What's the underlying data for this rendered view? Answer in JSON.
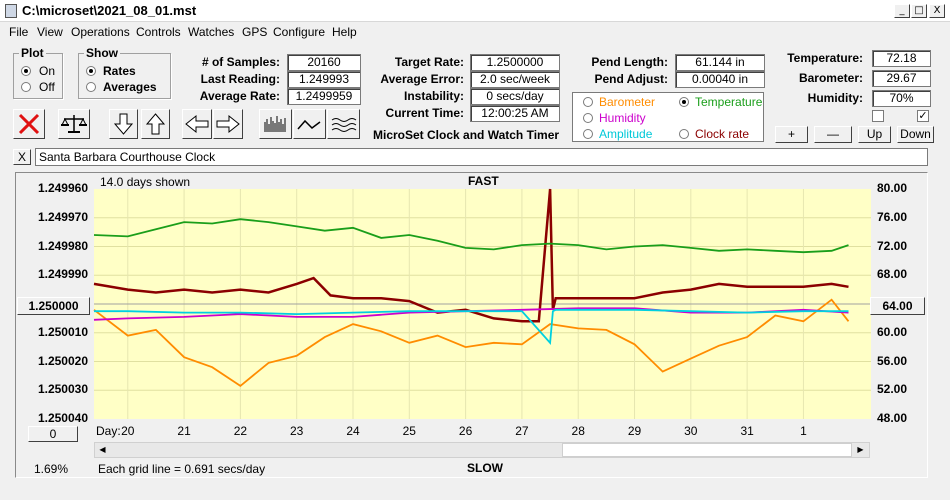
{
  "window": {
    "title": "C:\\microset\\2021_08_01.mst",
    "minimize": "_",
    "maximize": "□",
    "close": "X"
  },
  "menu": [
    "File",
    "View",
    "Operations",
    "Controls",
    "Watches",
    "GPS",
    "Configure",
    "Help"
  ],
  "plot_group": {
    "label": "Plot",
    "options": [
      "On",
      "Off"
    ],
    "selected": "On"
  },
  "show_group": {
    "label": "Show",
    "options": [
      "Rates",
      "Averages"
    ],
    "selected": "Rates"
  },
  "stats": {
    "samples_label": "# of Samples:",
    "samples": "20160",
    "last_reading_label": "Last Reading:",
    "last_reading": "1.249993",
    "average_rate_label": "Average Rate:",
    "average_rate": "1.2499959",
    "target_rate_label": "Target Rate:",
    "target_rate": "1.2500000",
    "average_error_label": "Average Error:",
    "average_error": "2.0 sec/week",
    "instability_label": "Instability:",
    "instability": "0 secs/day",
    "current_time_label": "Current Time:",
    "current_time": "12:00:25 AM",
    "pend_length_label": "Pend Length:",
    "pend_length": "61.144 in",
    "pend_adjust_label": "Pend Adjust:",
    "pend_adjust": "0.00040 in",
    "temperature_label": "Temperature:",
    "temperature": "72.18",
    "barometer_label": "Barometer:",
    "barometer": "29.67",
    "humidity_label": "Humidity:",
    "humidity": "70%"
  },
  "app_caption": "MicroSet Clock and Watch Timer",
  "overlay": {
    "options": [
      {
        "label": "Barometer",
        "color": "#ff8c00",
        "selected": false
      },
      {
        "label": "Temperature",
        "color": "#1a9e1a",
        "selected": true
      },
      {
        "label": "Humidity",
        "color": "#cc00cc",
        "selected": false
      },
      {
        "label": "Amplitude",
        "color": "#00d0e0",
        "selected": false
      },
      {
        "label": "Clock rate",
        "color": "#8b0000",
        "selected": false
      }
    ]
  },
  "scale_buttons": {
    "plus": "+",
    "minus": "—",
    "up": "Up",
    "down": "Down"
  },
  "clock_name": {
    "close": "X",
    "value": "Santa Barbara Courthouse Clock"
  },
  "chart_labels": {
    "days_shown": "14.0 days shown",
    "fast": "FAST",
    "slow": "SLOW",
    "day_label": "Day:",
    "grid_note": "Each grid line = 0.691 secs/day",
    "percent": "1.69%",
    "center_left": "1.250000",
    "center_right": "64.00",
    "offset_button": "0"
  },
  "chart_data": {
    "type": "line",
    "x_label": "Day:",
    "x_ticks": [
      "20",
      "21",
      "22",
      "23",
      "24",
      "25",
      "26",
      "27",
      "28",
      "29",
      "30",
      "31",
      "1"
    ],
    "y_left_ticks": [
      "1.249960",
      "1.249970",
      "1.249980",
      "1.249990",
      "1.250000",
      "1.250010",
      "1.250020",
      "1.250030",
      "1.250040"
    ],
    "y_right_ticks": [
      "80.00",
      "76.00",
      "72.00",
      "68.00",
      "64.00",
      "60.00",
      "56.00",
      "52.00",
      "48.00"
    ],
    "ylim_left": [
      1.24996,
      1.25004
    ],
    "ylim_right": [
      48,
      80
    ],
    "xlim": [
      19.4,
      2.2
    ],
    "series": [
      {
        "name": "Clock rate",
        "color": "#8b0000",
        "x": [
          19.4,
          20,
          20.5,
          21,
          21.5,
          22,
          22.5,
          23,
          23.3,
          23.6,
          24,
          24.5,
          25,
          25.5,
          26,
          26.5,
          27,
          27.3,
          27.5,
          27.55,
          27.6,
          28,
          28.5,
          29,
          29.5,
          30,
          30.5,
          31,
          31.5,
          1,
          1.5,
          1.8
        ],
        "y": [
          1.249993,
          1.249995,
          1.249996,
          1.249995,
          1.249996,
          1.249995,
          1.249996,
          1.249993,
          1.249991,
          1.249997,
          1.249998,
          1.249998,
          1.249999,
          1.250003,
          1.250002,
          1.250005,
          1.250006,
          1.250006,
          1.24996,
          1.250002,
          1.249998,
          1.249998,
          1.249998,
          1.249998,
          1.249996,
          1.249995,
          1.249993,
          1.249994,
          1.249994,
          1.249994,
          1.249993,
          1.249994
        ]
      },
      {
        "name": "Temperature",
        "color": "#1a9e1a",
        "x": [
          19.4,
          20,
          20.5,
          21,
          21.5,
          22,
          22.5,
          23,
          23.5,
          24,
          24.5,
          25,
          25.5,
          26,
          26.5,
          27,
          27.5,
          28,
          28.5,
          29,
          29.5,
          30,
          30.5,
          31,
          31.5,
          1,
          1.5,
          1.8
        ],
        "y": [
          73.6,
          73.4,
          74.4,
          75.4,
          75.2,
          75.8,
          75.4,
          74.8,
          74.2,
          74.6,
          73.2,
          73.6,
          72.8,
          71.8,
          71.6,
          72.2,
          72.4,
          72.2,
          71.6,
          72.0,
          72.2,
          71.8,
          71.4,
          71.6,
          71.4,
          71.2,
          71.4,
          72.2
        ]
      },
      {
        "name": "Barometer",
        "color": "#ff8c00",
        "x": [
          19.4,
          20,
          20.5,
          21,
          21.5,
          22,
          22.5,
          23,
          23.5,
          24,
          24.5,
          25,
          25.5,
          26,
          26.5,
          27,
          27.5,
          28,
          28.5,
          29,
          29.5,
          30,
          30.5,
          31,
          31.5,
          1,
          1.5,
          1.8
        ],
        "y": [
          63.2,
          59.6,
          60.4,
          56.6,
          55.2,
          52.6,
          55.8,
          56.8,
          59.4,
          61.2,
          60.2,
          58.6,
          59.6,
          58.0,
          58.6,
          58.4,
          61.2,
          60.6,
          60.4,
          58.4,
          54.6,
          56.4,
          58.2,
          59.4,
          62.4,
          61.6,
          64.6,
          61.6
        ]
      },
      {
        "name": "Humidity",
        "color": "#cc00cc",
        "x": [
          19.4,
          20,
          21,
          22,
          23,
          24,
          25,
          26,
          27,
          28,
          29,
          30,
          31,
          1,
          1.8
        ],
        "y": [
          61.8,
          62.0,
          62.2,
          62.6,
          62.2,
          62.2,
          62.8,
          63.0,
          63.2,
          63.4,
          63.4,
          62.8,
          62.8,
          63.2,
          62.8
        ]
      },
      {
        "name": "Amplitude",
        "color": "#00d0e0",
        "x": [
          19.4,
          20,
          21,
          22,
          23,
          24,
          25,
          26,
          27,
          27.5,
          27.55,
          27.6,
          28,
          29,
          30,
          31,
          1,
          1.8
        ],
        "y": [
          63.0,
          63.0,
          62.8,
          62.8,
          62.6,
          62.8,
          63.0,
          63.0,
          63.0,
          58.6,
          63.0,
          63.2,
          63.2,
          63.2,
          63.0,
          62.8,
          63.0,
          63.0
        ]
      }
    ]
  }
}
